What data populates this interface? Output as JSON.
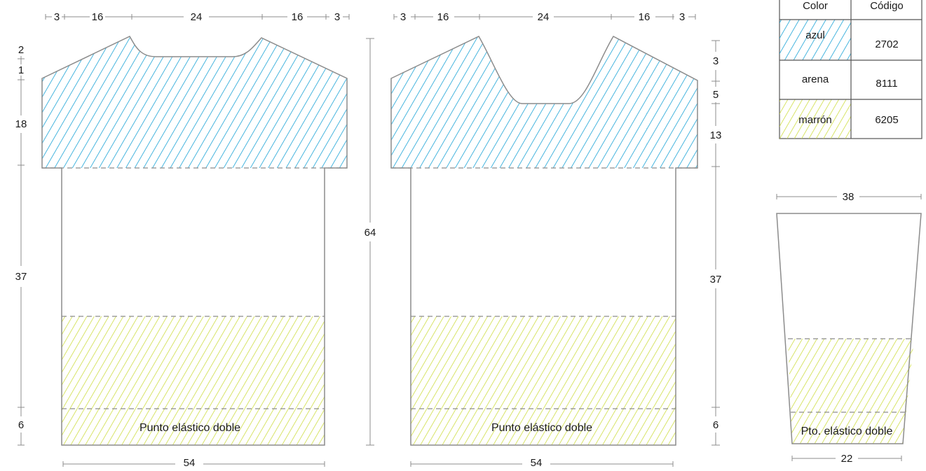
{
  "colors": {
    "azul": "#1aa3d6",
    "marron": "#c8d92a",
    "outline": "#8c8c8c",
    "text": "#1a1a1a"
  },
  "front": {
    "top_dims": [
      "3",
      "16",
      "24",
      "16",
      "3"
    ],
    "left_dims": [
      "2",
      "1",
      "18",
      "37",
      "6"
    ],
    "bottom_dim": "54",
    "rib_label": "Punto elástico doble"
  },
  "center_dim": "64",
  "back": {
    "top_dims": [
      "3",
      "16",
      "24",
      "16",
      "3"
    ],
    "right_dims": [
      "3",
      "5",
      "13",
      "37",
      "6"
    ],
    "bottom_dim": "54",
    "rib_label": "Punto elástico doble"
  },
  "legend": {
    "headers": [
      "Color",
      "Código"
    ],
    "rows": [
      {
        "name": "azul",
        "code": "2702"
      },
      {
        "name": "arena",
        "code": "8111"
      },
      {
        "name": "marrón",
        "code": "6205"
      }
    ]
  },
  "sleeve": {
    "top_dim": "38",
    "bottom_dim": "22",
    "rib_label": "Pto. elástico doble"
  }
}
